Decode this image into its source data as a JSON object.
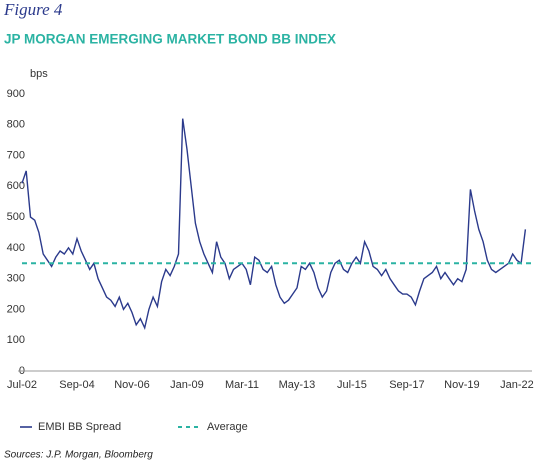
{
  "chart_data": {
    "type": "line",
    "figure_label": "Figure 4",
    "title": "JP MORGAN EMERGING MARKET BOND BB INDEX",
    "y_label": "bps",
    "source": "Sources: J.P. Morgan, Bloomberg",
    "categories": [
      "Jul-02",
      null,
      null,
      null,
      null,
      null,
      null,
      null,
      null,
      null,
      null,
      null,
      null,
      "Sep-04",
      null,
      null,
      null,
      null,
      null,
      null,
      null,
      null,
      null,
      null,
      null,
      null,
      "Nov-06",
      null,
      null,
      null,
      null,
      null,
      null,
      null,
      null,
      null,
      null,
      null,
      null,
      "Jan-09",
      null,
      null,
      null,
      null,
      null,
      null,
      null,
      null,
      null,
      null,
      null,
      null,
      "Mar-11",
      null,
      null,
      null,
      null,
      null,
      null,
      null,
      null,
      null,
      null,
      null,
      null,
      "May-13",
      null,
      null,
      null,
      null,
      null,
      null,
      null,
      null,
      null,
      null,
      null,
      null,
      "Jul-15",
      null,
      null,
      null,
      null,
      null,
      null,
      null,
      null,
      null,
      null,
      null,
      null,
      "Sep-17",
      null,
      null,
      null,
      null,
      null,
      null,
      null,
      null,
      null,
      null,
      null,
      null,
      "Nov-19",
      null,
      null,
      null,
      null,
      null,
      null,
      null,
      null,
      null,
      null,
      null,
      null,
      "Jan-22",
      null,
      null
    ],
    "series": [
      {
        "name": "EMBI BB Spread",
        "color": "#2b3a8c",
        "values": [
          610,
          650,
          500,
          490,
          450,
          380,
          360,
          340,
          370,
          390,
          380,
          400,
          380,
          430,
          390,
          360,
          330,
          350,
          300,
          270,
          240,
          230,
          210,
          240,
          200,
          220,
          190,
          150,
          170,
          140,
          200,
          240,
          210,
          290,
          330,
          310,
          340,
          380,
          820,
          720,
          600,
          480,
          420,
          380,
          350,
          320,
          420,
          370,
          350,
          300,
          330,
          340,
          350,
          330,
          280,
          370,
          360,
          330,
          320,
          340,
          280,
          240,
          220,
          230,
          250,
          270,
          340,
          330,
          350,
          320,
          270,
          240,
          260,
          320,
          350,
          360,
          330,
          320,
          350,
          370,
          350,
          420,
          390,
          340,
          330,
          310,
          330,
          300,
          280,
          260,
          250,
          250,
          240,
          215,
          260,
          300,
          310,
          320,
          340,
          300,
          320,
          300,
          280,
          300,
          290,
          330,
          590,
          520,
          460,
          420,
          360,
          330,
          320,
          330,
          340,
          350,
          380,
          360,
          350,
          460
        ]
      }
    ],
    "average": {
      "name": "Average",
      "value": 350,
      "color": "#2bb3a3"
    },
    "ylim": [
      0,
      900
    ],
    "yticks": [
      0,
      100,
      200,
      300,
      400,
      500,
      600,
      700,
      800,
      900
    ],
    "grid": false
  }
}
